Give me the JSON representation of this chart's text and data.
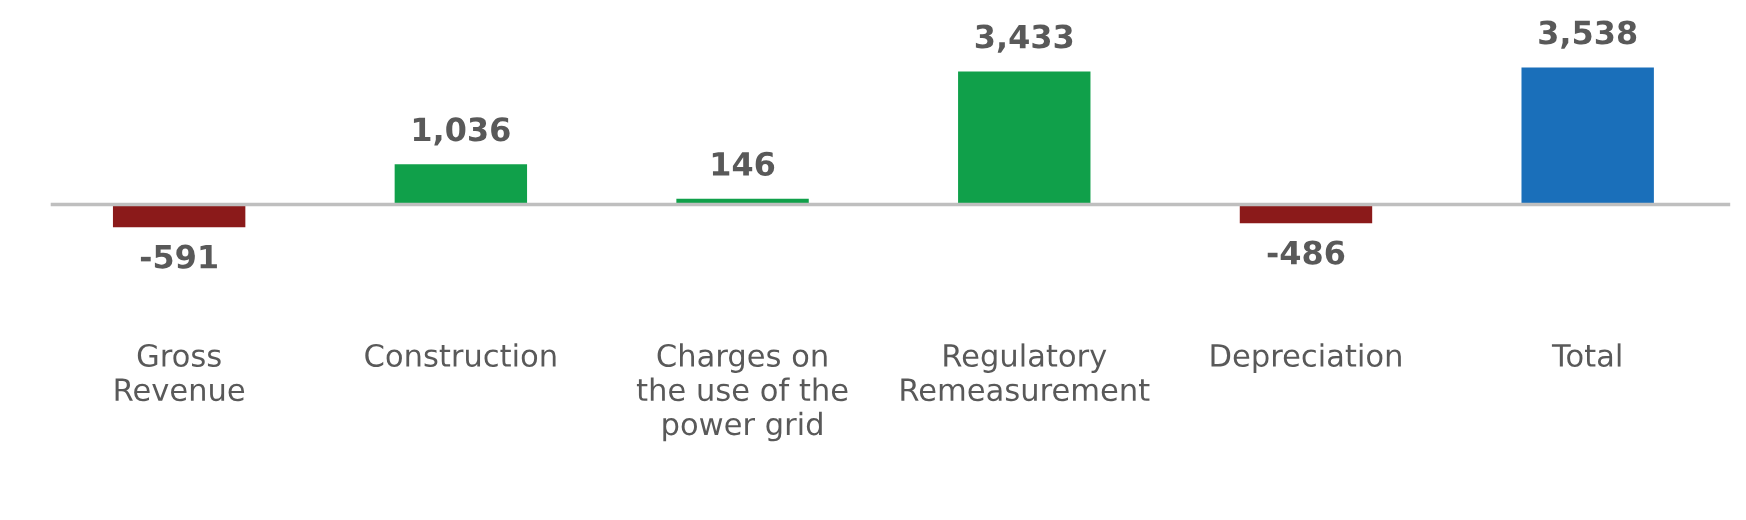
{
  "chart_data": {
    "type": "bar",
    "categories": [
      "Gross\nRevenue",
      "Construction",
      "Charges on\nthe use of the\npower grid",
      "Regulatory\nRemeasurement",
      "Depreciation",
      "Total"
    ],
    "values": [
      -591,
      1036,
      146,
      3433,
      -486,
      3538
    ],
    "colors": [
      "#8b1a1a",
      "#10a04a",
      "#10a04a",
      "#10a04a",
      "#8b1a1a",
      "#1a6fba"
    ],
    "value_labels": [
      "-591",
      "1,036",
      "146",
      "3,433",
      "-486",
      "3,538"
    ],
    "grid": false,
    "legend": false
  }
}
